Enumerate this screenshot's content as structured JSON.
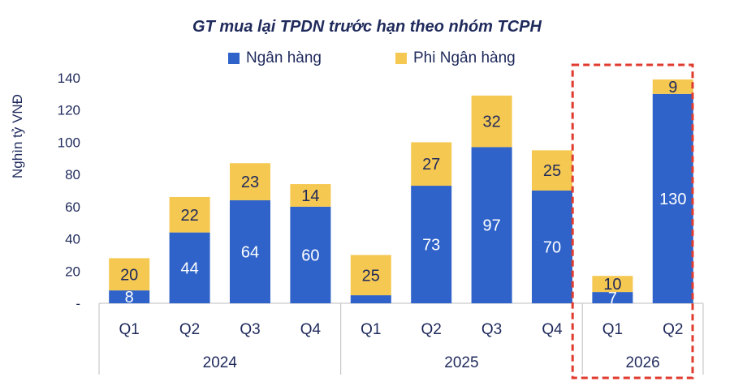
{
  "chart_data": {
    "type": "bar",
    "stacked": true,
    "title": "GT mua lại TPDN trước hạn theo nhóm TCPH",
    "ylabel": "Nghìn tỷ VNĐ",
    "ylim": [
      0,
      140
    ],
    "yticks": [
      "-",
      "20",
      "40",
      "60",
      "80",
      "100",
      "120",
      "140"
    ],
    "categories": [
      "Q1",
      "Q2",
      "Q3",
      "Q4",
      "Q1",
      "Q2",
      "Q3",
      "Q4",
      "Q1",
      "Q2"
    ],
    "groups": [
      {
        "label": "2024",
        "count": 4
      },
      {
        "label": "2025",
        "count": 4
      },
      {
        "label": "2026",
        "count": 2,
        "highlighted": true
      }
    ],
    "series": [
      {
        "name": "Ngân hàng",
        "color": "#2f63c9",
        "values": [
          8,
          44,
          64,
          60,
          5,
          73,
          97,
          70,
          7,
          130
        ],
        "labels": [
          "8",
          "44",
          "64",
          "60",
          "",
          "73",
          "97",
          "70",
          "7",
          "130"
        ]
      },
      {
        "name": "Phi Ngân hàng",
        "color": "#f5c851",
        "values": [
          20,
          22,
          23,
          14,
          25,
          27,
          32,
          25,
          10,
          9
        ],
        "labels": [
          "20",
          "22",
          "23",
          "14",
          "25",
          "27",
          "32",
          "25",
          "10",
          "9"
        ]
      }
    ],
    "legend_position": "top",
    "grid": false,
    "highlight_color": "#e03b2f"
  }
}
